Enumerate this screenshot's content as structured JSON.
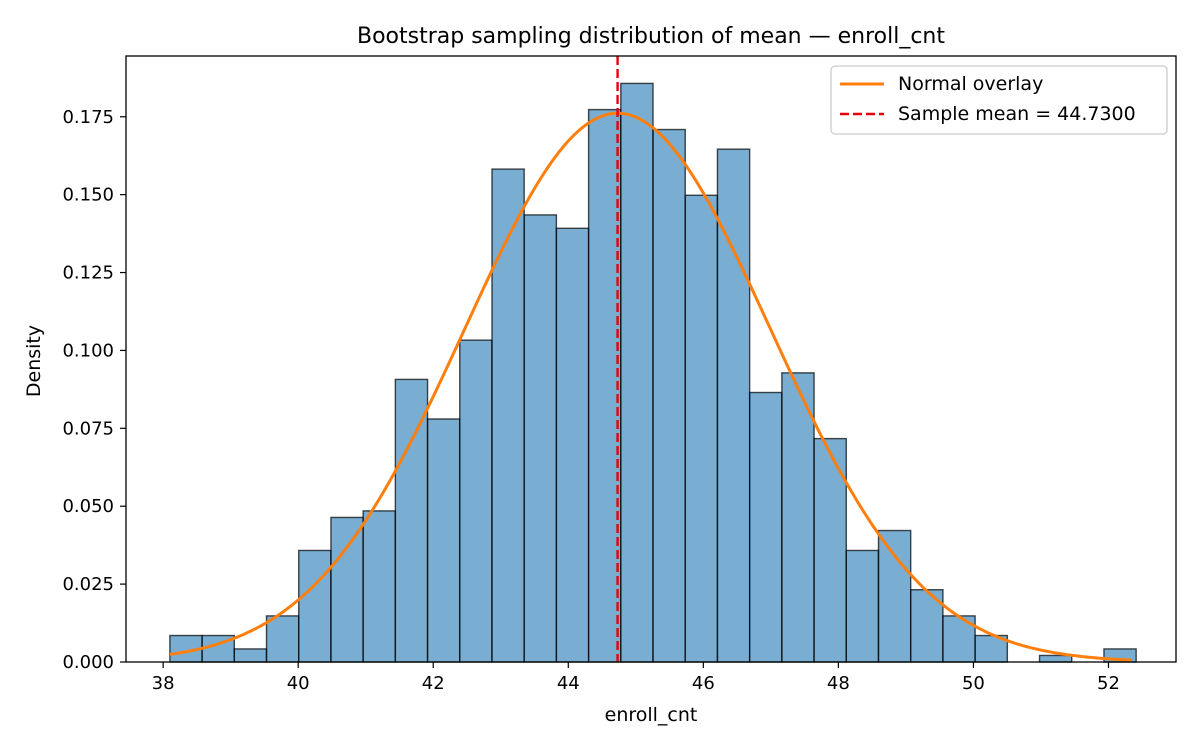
{
  "chart_data": {
    "type": "bar",
    "title": "Bootstrap sampling distribution of mean — enroll_cnt",
    "xlabel": "enroll_cnt",
    "ylabel": "Density",
    "xlim": [
      37.45,
      53.0
    ],
    "ylim": [
      0,
      0.1945
    ],
    "xticks": [
      38,
      40,
      42,
      44,
      46,
      48,
      50,
      52
    ],
    "xtick_labels": [
      "38",
      "40",
      "42",
      "44",
      "46",
      "48",
      "50",
      "52"
    ],
    "yticks": [
      0.0,
      0.025,
      0.05,
      0.075,
      0.1,
      0.125,
      0.15,
      0.175
    ],
    "ytick_labels": [
      "0.000",
      "0.025",
      "0.050",
      "0.075",
      "0.100",
      "0.125",
      "0.150",
      "0.175"
    ],
    "bin_start": 38.1,
    "bin_width": 0.477,
    "values": [
      0.0085,
      0.0085,
      0.0042,
      0.0148,
      0.0358,
      0.0464,
      0.0485,
      0.0907,
      0.078,
      0.1033,
      0.1582,
      0.1435,
      0.1392,
      0.1773,
      0.1857,
      0.1709,
      0.1498,
      0.1646,
      0.0865,
      0.0928,
      0.0717,
      0.0358,
      0.0422,
      0.0232,
      0.0148,
      0.0085,
      0.0,
      0.0021,
      0.0,
      0.0042
    ],
    "bar_color": "#1f77b4",
    "normal_overlay": {
      "mean": 44.73,
      "sd": 2.265,
      "x_from": 38.1,
      "x_to": 52.35,
      "color": "#ff7f0e"
    },
    "mean_line": {
      "x": 44.73,
      "color": "#e8000b"
    },
    "legend": {
      "position": "upper right",
      "entries": [
        {
          "label": "Normal overlay",
          "style": "solid",
          "color": "#ff7f0e"
        },
        {
          "label": "Sample mean = 44.7300",
          "style": "dashed",
          "color": "#e8000b"
        }
      ]
    },
    "grid": false
  }
}
